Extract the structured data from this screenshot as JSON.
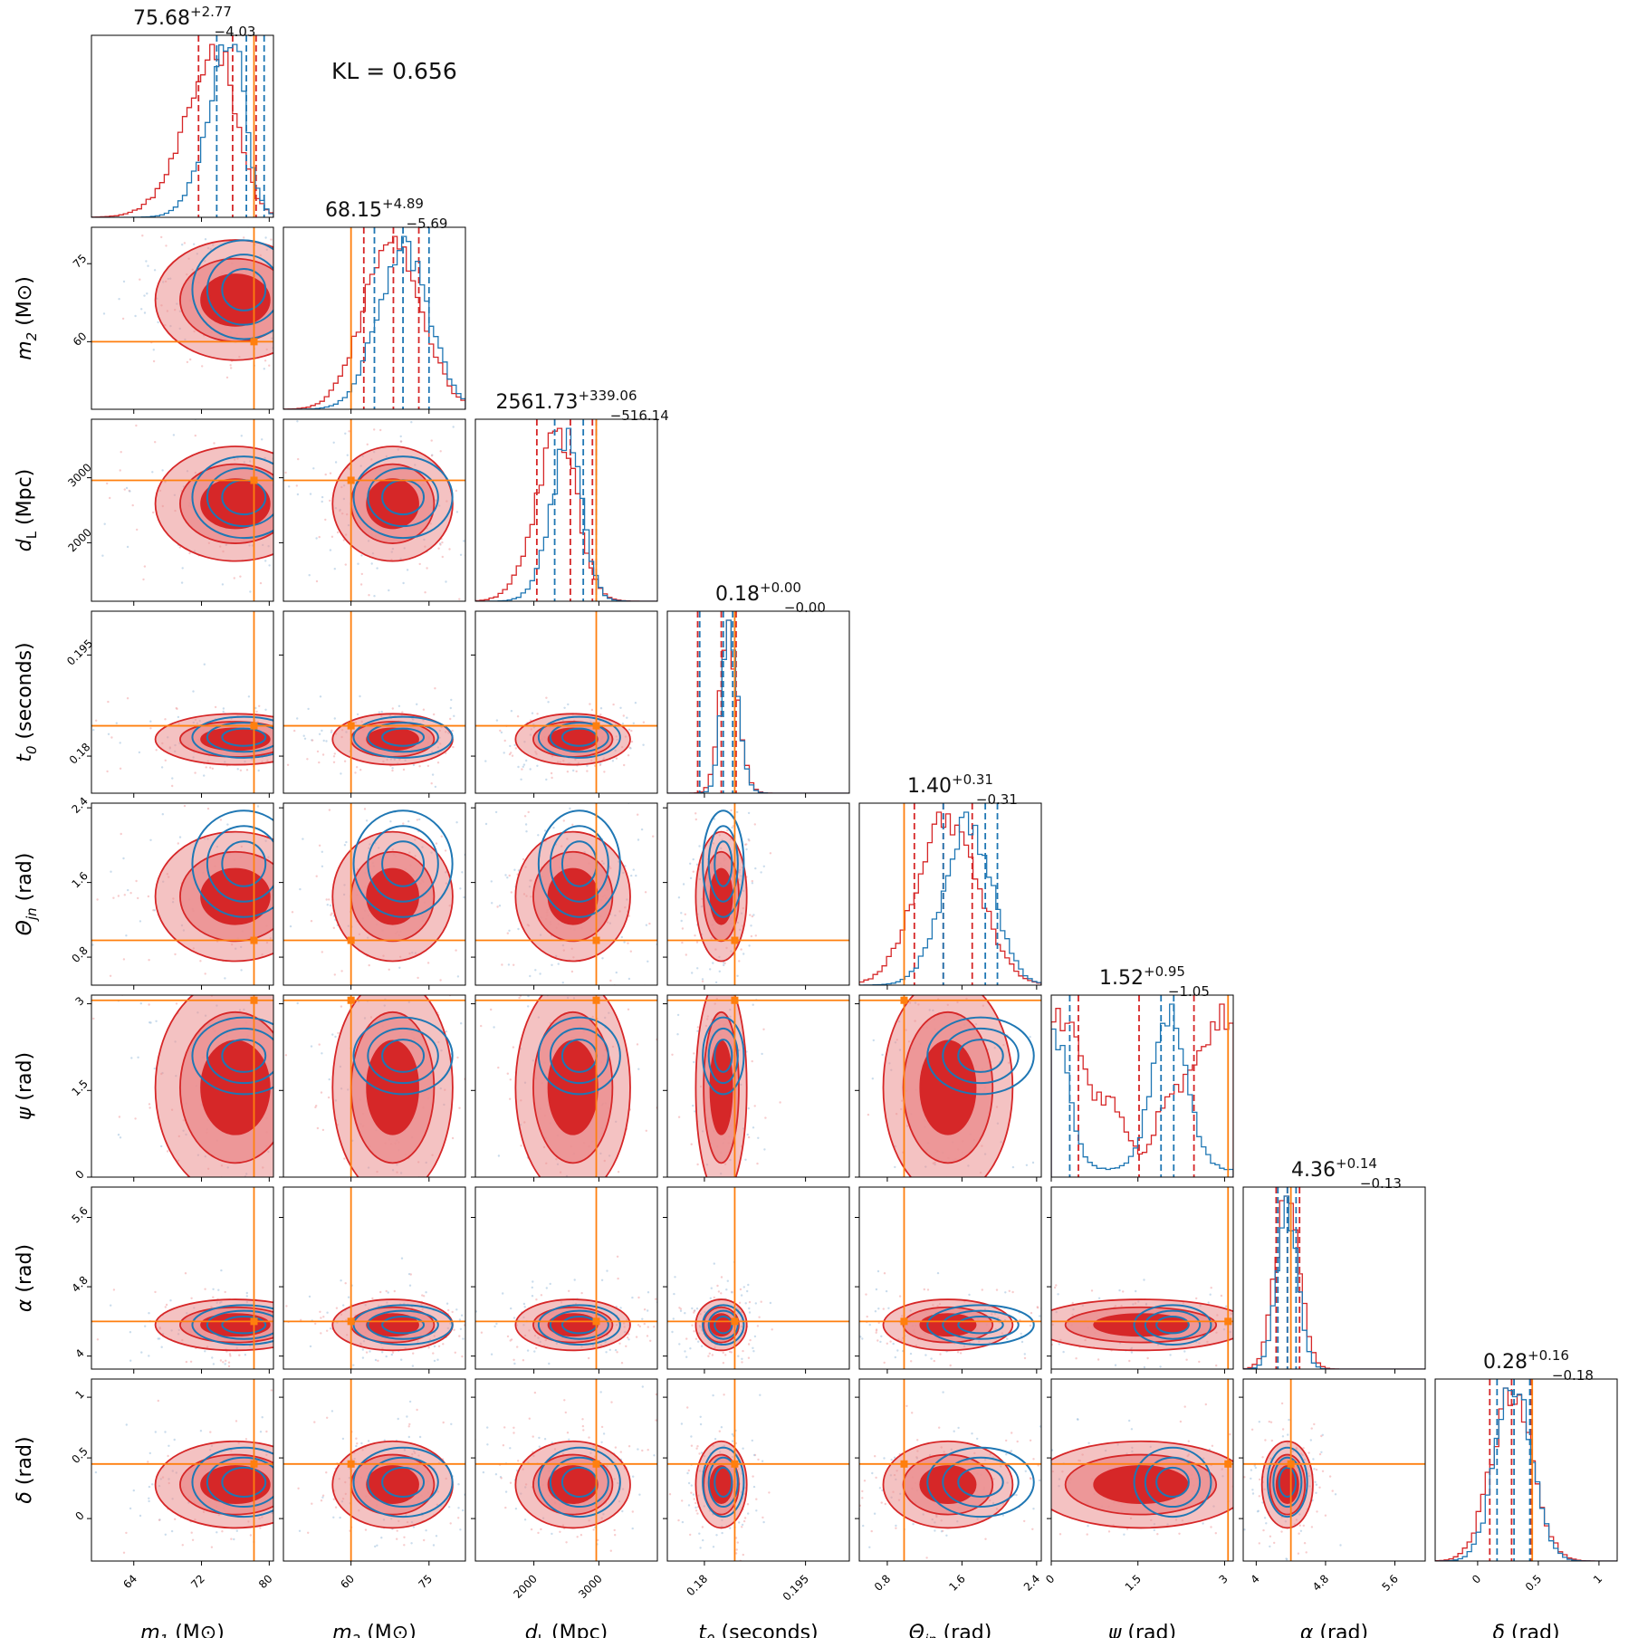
{
  "kl_text": "KL = 0.656",
  "colors": {
    "red": "#d62728",
    "red_fill_dark": "#d62728",
    "red_fill_light": "#eb8f90",
    "blue": "#1f77b4",
    "truth": "#ff7f0e"
  },
  "chart_data": {
    "type": "corner",
    "params": [
      {
        "key": "m1",
        "xlabel": "m_1",
        "unit": "(M⊙)",
        "ylabel": "",
        "range": [
          59,
          80.5
        ],
        "ticks": [
          64,
          72,
          80
        ],
        "truth": 78.2,
        "title_main": "75.68",
        "title_sup": "+2.77",
        "title_sub": "−4.03",
        "red": {
          "mean": 76,
          "sd": 4.5,
          "skew": -3
        },
        "blue": {
          "mean": 77,
          "sd": 3.2,
          "skew": -3
        },
        "quantiles_red": [
          71.65,
          75.68,
          78.45
        ],
        "quantiles_blue": [
          73.8,
          77.3,
          79.4
        ]
      },
      {
        "key": "m2",
        "xlabel": "m_2",
        "unit": "(M⊙)",
        "ylabel": "m_2",
        "range": [
          47,
          82
        ],
        "ticks": [
          60,
          75
        ],
        "truth": 60,
        "title_main": "68.15",
        "title_sup": "+4.89",
        "title_sub": "−5.69",
        "red": {
          "mean": 68,
          "sd": 5.5,
          "skew": 0
        },
        "blue": {
          "mean": 70,
          "sd": 5,
          "skew": 0
        },
        "quantiles_red": [
          62.46,
          68.15,
          73.04
        ],
        "quantiles_blue": [
          64.5,
          70,
          75
        ]
      },
      {
        "key": "dL",
        "xlabel": "d_L",
        "unit": "(Mpc)",
        "ylabel": "d_L",
        "range": [
          1100,
          3900
        ],
        "ticks": [
          2000,
          3000
        ],
        "truth": 2960,
        "title_main": "2561.73",
        "title_sup": "+339.06",
        "title_sub": "−516.14",
        "red": {
          "mean": 2600,
          "sd": 420,
          "skew": -2
        },
        "blue": {
          "mean": 2700,
          "sd": 330,
          "skew": -2
        },
        "quantiles_red": [
          2045.6,
          2561.7,
          2900.8
        ],
        "quantiles_blue": [
          2320,
          2760,
          2960
        ]
      },
      {
        "key": "t0",
        "xlabel": "t_0",
        "unit": "(seconds)",
        "ylabel": "t_0",
        "range": [
          0.1745,
          0.2015
        ],
        "ticks": [
          0.18,
          0.195
        ],
        "truth": 0.1845,
        "title_main": "0.18",
        "title_sup": "+0.00",
        "title_sub": "−0.00",
        "red": {
          "mean": 0.1825,
          "sd": 0.0018,
          "skew": 2
        },
        "blue": {
          "mean": 0.1828,
          "sd": 0.0016,
          "skew": 2
        },
        "quantiles_red": [
          0.179,
          0.1825,
          0.1847
        ],
        "quantiles_blue": [
          0.1793,
          0.1828,
          0.1842
        ]
      },
      {
        "key": "thetajn",
        "xlabel": "Θ_jn",
        "unit": "(rad)",
        "ylabel": "Θ_jn",
        "range": [
          0.5,
          2.45
        ],
        "ticks": [
          0.8,
          1.6,
          2.4
        ],
        "truth": 0.98,
        "title_main": "1.40",
        "title_sup": "+0.31",
        "title_sub": "−0.31",
        "red": {
          "mean": 1.45,
          "sd": 0.33,
          "skew": 0
        },
        "blue": {
          "mean": 1.8,
          "sd": 0.3,
          "skew": -1
        },
        "quantiles_red": [
          1.09,
          1.4,
          1.71
        ],
        "quantiles_blue": [
          1.4,
          1.85,
          1.98
        ]
      },
      {
        "key": "psi",
        "xlabel": "ψ",
        "unit": "(rad)",
        "ylabel": "ψ",
        "range": [
          0,
          3.15
        ],
        "ticks": [
          0.0,
          1.5,
          3.0
        ],
        "truth": 3.06,
        "title_main": "1.52",
        "title_sup": "+0.95",
        "title_sub": "−1.05",
        "red": {
          "mean": 1.55,
          "sd": 0.9,
          "skew": 0
        },
        "blue": {
          "mean": 2.1,
          "sd": 0.35,
          "skew": 0
        },
        "quantiles_red": [
          0.47,
          1.52,
          2.47
        ],
        "quantiles_blue": [
          0.32,
          1.9,
          2.12
        ]
      },
      {
        "key": "alpha",
        "xlabel": "α",
        "unit": "(rad)",
        "ylabel": "α",
        "range": [
          3.85,
          5.95
        ],
        "ticks": [
          4.0,
          4.8,
          5.6
        ],
        "truth": 4.4,
        "title_main": "4.36",
        "title_sup": "+0.14",
        "title_sub": "−0.13",
        "red": {
          "mean": 4.36,
          "sd": 0.14,
          "skew": 0
        },
        "blue": {
          "mean": 4.36,
          "sd": 0.12,
          "skew": 0
        },
        "quantiles_red": [
          4.23,
          4.36,
          4.5
        ],
        "quantiles_blue": [
          4.25,
          4.36,
          4.46
        ]
      },
      {
        "key": "delta",
        "xlabel": "δ",
        "unit": "(rad)",
        "ylabel": "δ",
        "range": [
          -0.35,
          1.15
        ],
        "ticks": [
          0.0,
          0.5,
          1.0
        ],
        "truth": 0.45,
        "title_main": "0.28",
        "title_sup": "+0.16",
        "title_sub": "−0.18",
        "red": {
          "mean": 0.28,
          "sd": 0.17,
          "skew": 0
        },
        "blue": {
          "mean": 0.3,
          "sd": 0.15,
          "skew": 0
        },
        "quantiles_red": [
          0.1,
          0.28,
          0.44
        ],
        "quantiles_blue": [
          0.16,
          0.3,
          0.43
        ]
      }
    ]
  }
}
